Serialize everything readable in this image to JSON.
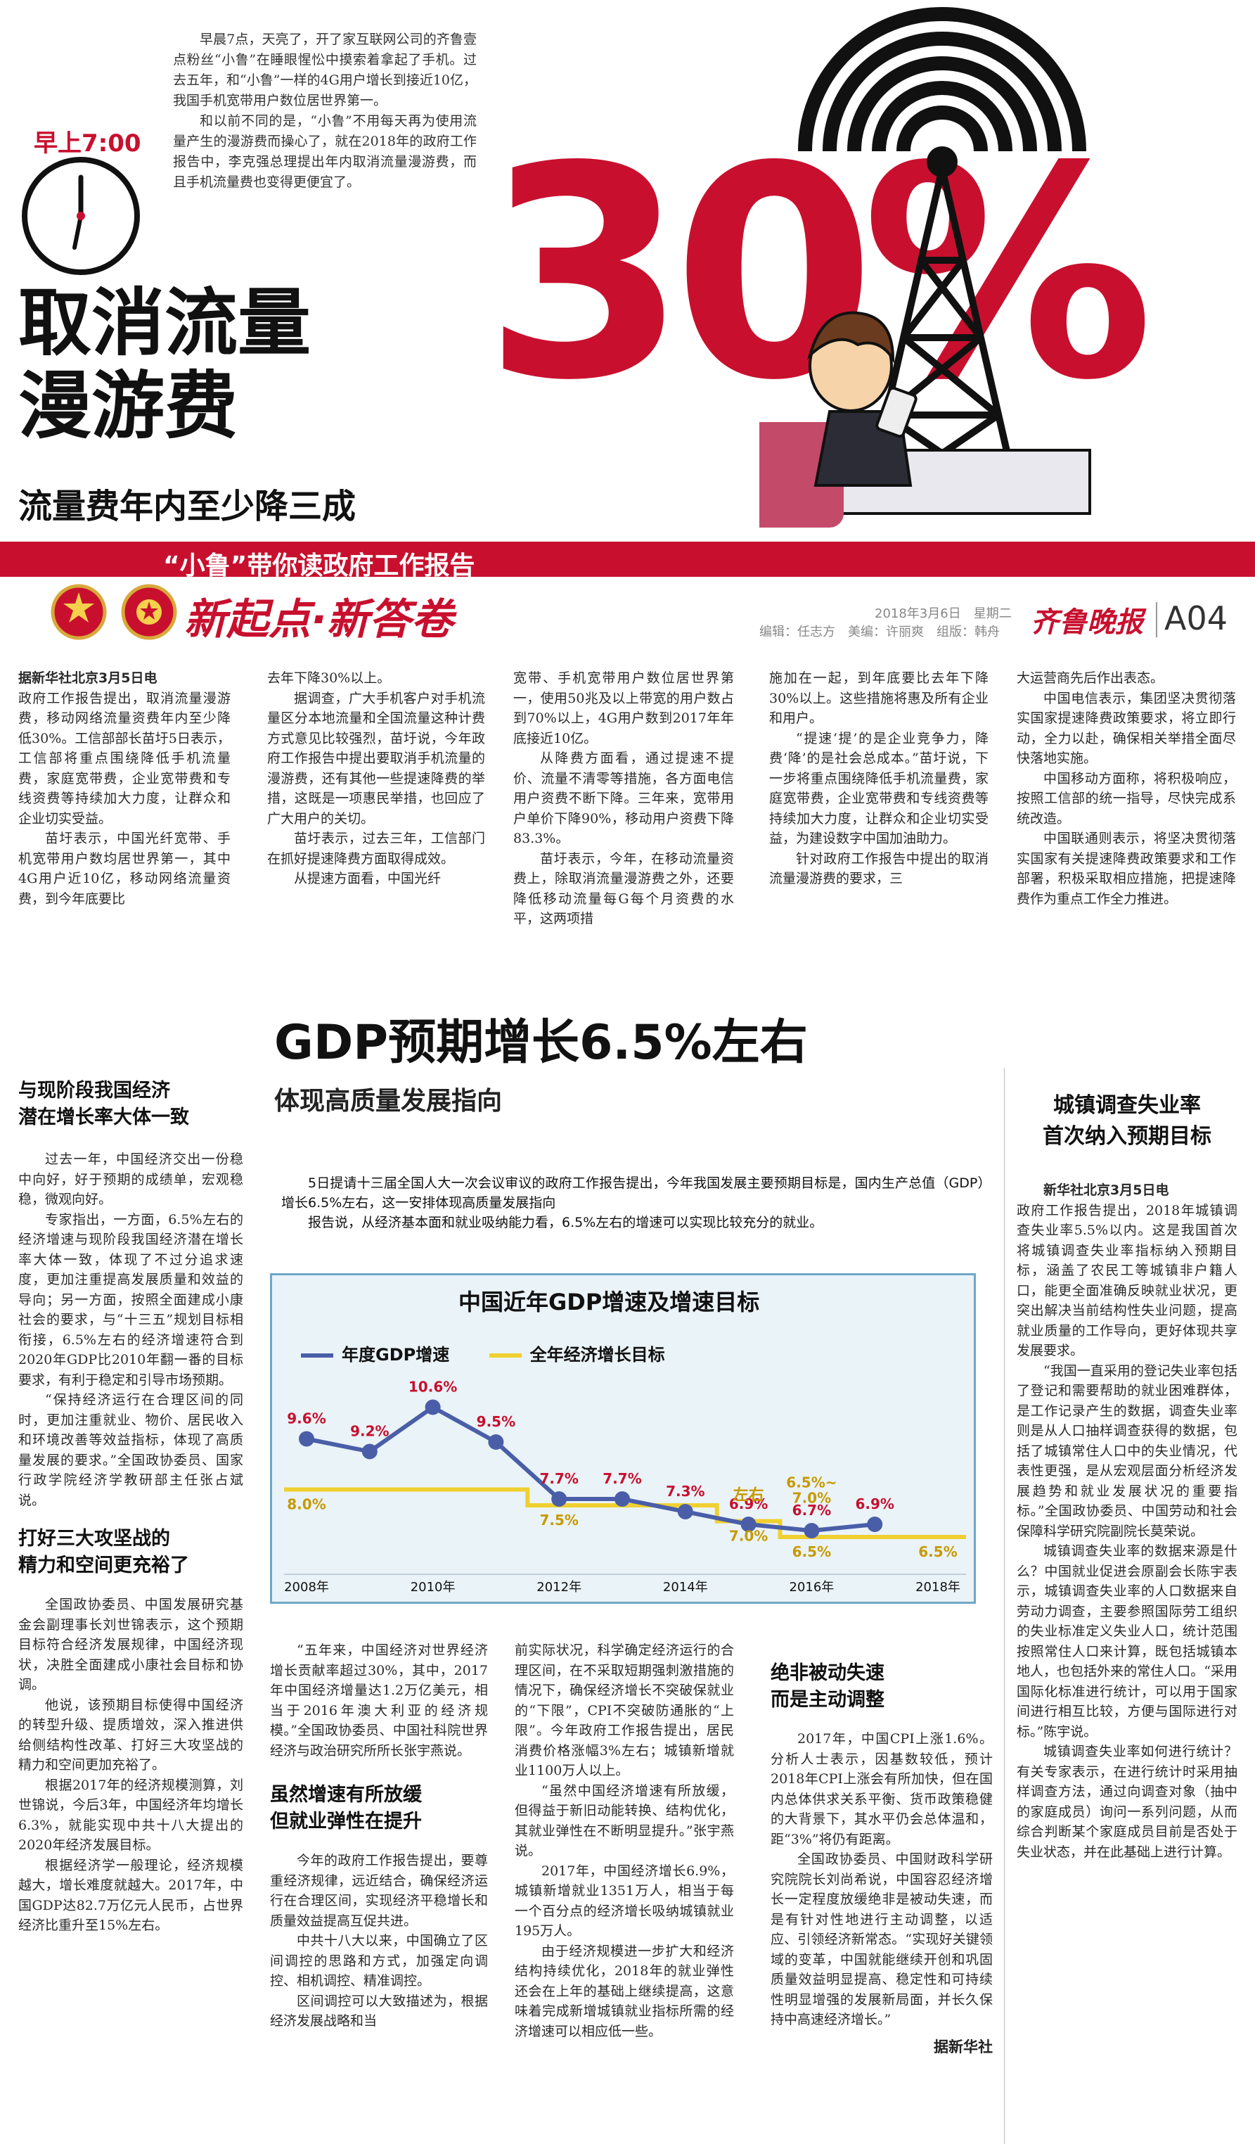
{
  "masthead": {
    "clock_time": "早上7:00",
    "intro_p1": "早晨7点，天亮了，开了家互联网公司的齐鲁壹点粉丝“小鲁”在睡眼惺忪中摸索着拿起了手机。过去五年，和“小鲁”一样的4G用户增长到接近10亿，我国手机宽带用户数位居世界第一。",
    "intro_p2": "和以前不同的是，“小鲁”不用每天再为使用流量产生的漫游费而操心了，就在2018年的政府工作报告中，李克强总理提出年内取消流量漫游费，而且手机流量费也变得更便宜了。",
    "headline_line1": "取消流量",
    "headline_line2": "漫游费",
    "subheadline": "流量费年内至少降三成",
    "big_number": "30%",
    "banner_text": "“小鲁”带你读政府工作报告",
    "section_title": "新起点·新答卷",
    "date": "2018年3月6日　星期二",
    "credits": "编辑：任志方　美编：许丽爽　组版：韩舟",
    "paper_name": "齐鲁晚报",
    "page_number": "A04"
  },
  "top_article": {
    "dateline": "据新华社北京3月5日电",
    "col1": "政府工作报告提出，取消流量漫游费，移动网络流量资费年内至少降低30%。工信部部长苗圩5日表示，工信部将重点围绕降低手机流量费，家庭宽带费，企业宽带费和专线资费等持续加大力度，让群众和企业切实受益。",
    "col1_p2": "苗圩表示，中国光纤宽带、手机宽带用户数均居世界第一，其中4G用户近10亿，移动网络流量资费，到今年底要比",
    "col2_p1": "去年下降30%以上。",
    "col2_p2": "据调查，广大手机客户对手机流量区分本地流量和全国流量这种计费方式意见比较强烈，苗圩说，今年政府工作报告中提出要取消手机流量的漫游费，还有其他一些提速降费的举措，这既是一项惠民举措，也回应了广大用户的关切。",
    "col2_p3": "苗圩表示，过去三年，工信部门在抓好提速降费方面取得成效。",
    "col2_p4": "从提速方面看，中国光纤",
    "col3_p1": "宽带、手机宽带用户数位居世界第一，使用50兆及以上带宽的用户数占到70%以上，4G用户数到2017年年底接近10亿。",
    "col3_p2": "从降费方面看，通过提速不提价、流量不清零等措施，各方面电信用户资费不断下降。三年来，宽带用户单价下降90%，移动用户资费下降83.3%。",
    "col3_p3": "苗圩表示，今年，在移动流量资费上，除取消流量漫游费之外，还要降低移动流量每G每个月资费的水平，这两项措",
    "col4_p1": "施加在一起，到年底要比去年下降30%以上。这些措施将惠及所有企业和用户。",
    "col4_p2": "“提速‘提’的是企业竞争力，降费‘降’的是社会总成本。”苗圩说，下一步将重点围绕降低手机流量费，家庭宽带费，企业宽带费和专线资费等持续加大力度，让群众和企业切实受益，为建设数字中国加油助力。",
    "col4_p3": "针对政府工作报告中提出的取消流量漫游费的要求，三",
    "col5_p1": "大运营商先后作出表态。",
    "col5_p2": "中国电信表示，集团坚决贯彻落实国家提速降费政策要求，将立即行动，全力以赴，确保相关举措全面尽快落地实施。",
    "col5_p3": "中国移动方面称，将积极响应，按照工信部的统一指导，尽快完成系统改造。",
    "col5_p4": "中国联通则表示，将坚决贯彻落实国家有关提速降费政策要求和工作部署，积极采取相应措施，把提速降费作为重点工作全力推进。"
  },
  "gdp_section": {
    "headline": "GDP预期增长6.5%左右",
    "subheadline": "体现高质量发展指向",
    "intro_p1": "5日提请十三届全国人大一次会议审议的政府工作报告提出，今年我国发展主要预期目标是，国内生产总值（GDP）增长6.5%左右，这一安排体现高质量发展指向",
    "intro_p2": "报告说，从经济基本面和就业吸纳能力看，6.5%左右的增速可以实现比较充分的就业。",
    "left_head1_l1": "与现阶段我国经济",
    "left_head1_l2": "潜在增长率大体一致",
    "left_p1": "过去一年，中国经济交出一份稳中向好，好于预期的成绩单，宏观稳稳，微观向好。",
    "left_p2": "专家指出，一方面，6.5%左右的经济增速与现阶段我国经济潜在增长率大体一致，体现了不过分追求速度，更加注重提高发展质量和效益的导向；另一方面，按照全面建成小康社会的要求，与“十三五”规划目标相衔接，6.5%左右的经济增速符合到2020年GDP比2010年翻一番的目标要求，有利于稳定和引导市场预期。",
    "left_p3": "“保持经济运行在合理区间的同时，更加注重就业、物价、居民收入和环境改善等效益指标，体现了高质量发展的要求。”全国政协委员、国家行政学院经济学教研部主任张占斌说。",
    "left_head2_l1": "打好三大攻坚战的",
    "left_head2_l2": "精力和空间更充裕了",
    "left_p4": "全国政协委员、中国发展研究基金会副理事长刘世锦表示，这个预期目标符合经济发展规律，中国经济现状，决胜全面建成小康社会目标和协调。",
    "left_p5": "他说，该预期目标使得中国经济的转型升级、提质增效，深入推进供给侧结构性改革、打好三大攻坚战的精力和空间更加充裕了。",
    "left_p6": "根据2017年的经济规模测算，刘世锦说，今后3年，中国经济年均增长6.3%，就能实现中共十八大提出的2020年经济发展目标。",
    "left_p7": "根据经济学一般理论，经济规模越大，增长难度就越大。2017年，中国GDP达82.7万亿元人民币，占世界经济比重升至15%左右。",
    "mid1_p1": "“五年来，中国经济对世界经济增长贡献率超过30%，其中，2017年中国经济增量达1.2万亿美元，相当于2016年澳大利亚的经济规模。”全国政协委员、中国社科院世界经济与政治研究所所长张宇燕说。",
    "mid1_head_l1": "虽然增速有所放缓",
    "mid1_head_l2": "但就业弹性在提升",
    "mid1_p2": "今年的政府工作报告提出，要尊重经济规律，远近结合，确保经济运行在合理区间，实现经济平稳增长和质量效益提高互促共进。",
    "mid1_p3": "中共十八大以来，中国确立了区间调控的思路和方式，加强定向调控、相机调控、精准调控。",
    "mid1_p4": "区间调控可以大致描述为，根据经济发展战略和当",
    "mid2_p1": "前实际状况，科学确定经济运行的合理区间，在不采取短期强刺激措施的情况下，确保经济增长不突破保就业的“下限”，CPI不突破防通胀的“上限”。今年政府工作报告提出，居民消费价格涨幅3%左右；城镇新增就业1100万人以上。",
    "mid2_p2": "“虽然中国经济增速有所放缓，但得益于新旧动能转换、结构优化，其就业弹性在不断明显提升。”张宇燕说。",
    "mid2_p3": "2017年，中国经济增长6.9%，城镇新增就业1351万人，相当于每一个百分点的经济增长吸纳城镇就业195万人。",
    "mid2_p4": "由于经济规模进一步扩大和经济结构持续优化，2018年的就业弹性还会在上年的基础上继续提高，这意味着完成新增城镇就业指标所需的经济增速可以相应低一些。",
    "right_head_l1": "绝非被动失速",
    "right_head_l2": "而是主动调整",
    "right_p1": "2017年，中国CPI上涨1.6%。分析人士表示，因基数较低，预计2018年CPI上涨会有所加快，但在国内总体供求关系平衡、货币政策稳健的大背景下，其水平仍会总体温和，距“3%”将仍有距离。",
    "right_p2": "全国政协委员、中国财政科学研究院院长刘尚希说，中国容忍经济增长一定程度放缓绝非是被动失速，而是有针对性地进行主动调整，以适应、引领经济新常态。“实现好关键领域的变革，中国就能继续开创和巩固质量效益明显提高、稳定性和可持续性明显增强的发展新局面，并长久保持中高速经济增长。”",
    "right_source": "据新华社"
  },
  "sidebar": {
    "head_l1": "城镇调查失业率",
    "head_l2": "首次纳入预期目标",
    "dateline": "新华社北京3月5日电",
    "p1": "政府工作报告提出，2018年城镇调查失业率5.5%以内。这是我国首次将城镇调查失业率指标纳入预期目标，涵盖了农民工等城镇非户籍人口，能更全面准确反映就业状况，更突出解决当前结构性失业问题，提高就业质量的工作导向，更好体现共享发展要求。",
    "p2": "“我国一直采用的登记失业率包括了登记和需要帮助的就业困难群体，是工作记录产生的数据，调查失业率则是从人口抽样调查获得的数据，包括了城镇常住人口中的失业情况，代表性更强，是从宏观层面分析经济发展趋势和就业发展状况的重要指标。”全国政协委员、中国劳动和社会保障科学研究院副院长莫荣说。",
    "p3": "城镇调查失业率的数据来源是什么？中国就业促进会原副会长陈宇表示，城镇调查失业率的人口数据来自劳动力调查，主要参照国际劳工组织的失业标准定义失业人口，统计范围按照常住人口来计算，既包括城镇本地人，也包括外来的常住人口。“采用国际化标准进行统计，可以用于国家间进行相互比较，方便与国际进行对标。”陈宇说。",
    "p4": "城镇调查失业率如何进行统计？有关专家表示，在进行统计时采用抽样调查方法，通过向调查对象（抽中的家庭成员）询问一系列问题，从而综合判断某个家庭成员目前是否处于失业状态，并在此基础上进行计算。"
  },
  "chart_data": {
    "type": "line",
    "title": "中国近年GDP增速及增速目标",
    "x": [
      2008,
      2009,
      2010,
      2011,
      2012,
      2013,
      2014,
      2015,
      2016,
      2017,
      2018
    ],
    "xticks": [
      "2008年",
      "2010年",
      "2012年",
      "2014年",
      "2016年",
      "2018年"
    ],
    "series": [
      {
        "name": "年度GDP增速",
        "color": "#4a5ea8",
        "values": [
          9.6,
          9.2,
          10.6,
          9.5,
          7.7,
          7.7,
          7.3,
          6.9,
          6.7,
          6.9,
          null
        ],
        "labels": [
          "9.6%",
          "9.2%",
          "10.6%",
          "9.5%",
          "7.7%",
          "7.7%",
          "7.3%",
          "6.9%",
          "6.7%",
          "6.9%",
          ""
        ]
      },
      {
        "name": "全年经济增长目标",
        "color": "#f0d030",
        "values": [
          8.0,
          8.0,
          8.0,
          8.0,
          7.5,
          7.5,
          7.5,
          7.0,
          6.5,
          6.5,
          6.5
        ],
        "labels": [
          "8.0%",
          "",
          "",
          "",
          "7.5%",
          "",
          "",
          "7.0%",
          "6.5%",
          "",
          "6.5%"
        ]
      }
    ],
    "annotations": [
      "左右",
      "6.5%~",
      "7.0%"
    ],
    "colors": {
      "frame": "#6fa7c8",
      "bg": "#eaf3f8",
      "line": "#4a5ea8",
      "target": "#f0d030",
      "label": "#c8102e"
    }
  },
  "colors": {
    "red": "#c8102e",
    "accent_blue": "#4a5ea8"
  }
}
